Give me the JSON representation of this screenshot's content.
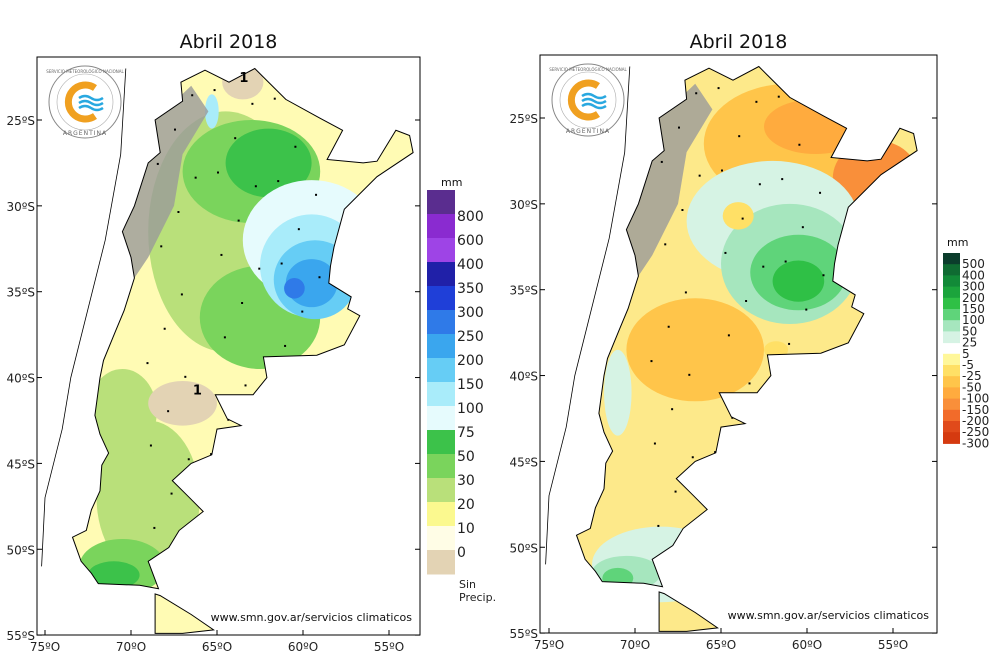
{
  "maps": [
    {
      "title": "Abril 2018",
      "variable": "precipitation",
      "url": "www.smn.gov.ar/servicios climaticos",
      "contour_label": "1",
      "legend": {
        "unit": "mm",
        "labels": [
          "800",
          "600",
          "400",
          "350",
          "300",
          "250",
          "200",
          "150",
          "100",
          "75",
          "50",
          "30",
          "20",
          "10",
          "0"
        ],
        "colors": [
          "#5a2d8f",
          "#8a2bd0",
          "#9e44e6",
          "#2020a8",
          "#1f3fd8",
          "#2f7ae8",
          "#3aa6ee",
          "#66cdf5",
          "#a9ecfa",
          "#e6fbfd",
          "#3cc24a",
          "#7ad45c",
          "#b9e07a",
          "#fbf98f",
          "#fffde6",
          "#e3d3b4"
        ],
        "bottom_label": "Sin Precip."
      }
    },
    {
      "title": "Abril 2018",
      "variable": "precipitation anomaly",
      "url": "www.smn.gov.ar/servicios climaticos",
      "legend": {
        "unit": "mm",
        "labels": [
          "500",
          "400",
          "300",
          "200",
          "150",
          "100",
          "50",
          "25",
          "5",
          "-5",
          "-25",
          "-50",
          "-100",
          "-150",
          "-200",
          "-250",
          "-300"
        ],
        "colors": [
          "#0b3d2c",
          "#0f6b32",
          "#128a38",
          "#1ba43c",
          "#2fc046",
          "#5fd47a",
          "#a6e6be",
          "#d6f3e4",
          "#ffffff",
          "#fff79a",
          "#ffe066",
          "#ffc54a",
          "#ffab3e",
          "#f98f3a",
          "#f26b2a",
          "#e04a1b",
          "#d53a10"
        ]
      }
    }
  ],
  "axes": {
    "lat_labels": [
      "25ºS",
      "30ºS",
      "35ºS",
      "40ºS",
      "45ºS",
      "50ºS",
      "55ºS"
    ],
    "lon_labels": [
      "75ºO",
      "70ºO",
      "65ºO",
      "60ºO",
      "55ºO"
    ]
  },
  "logo": {
    "text_top": "SERVICIO METEOROLÓGICO NACIONAL",
    "text_bottom": "ARGENTINA"
  }
}
